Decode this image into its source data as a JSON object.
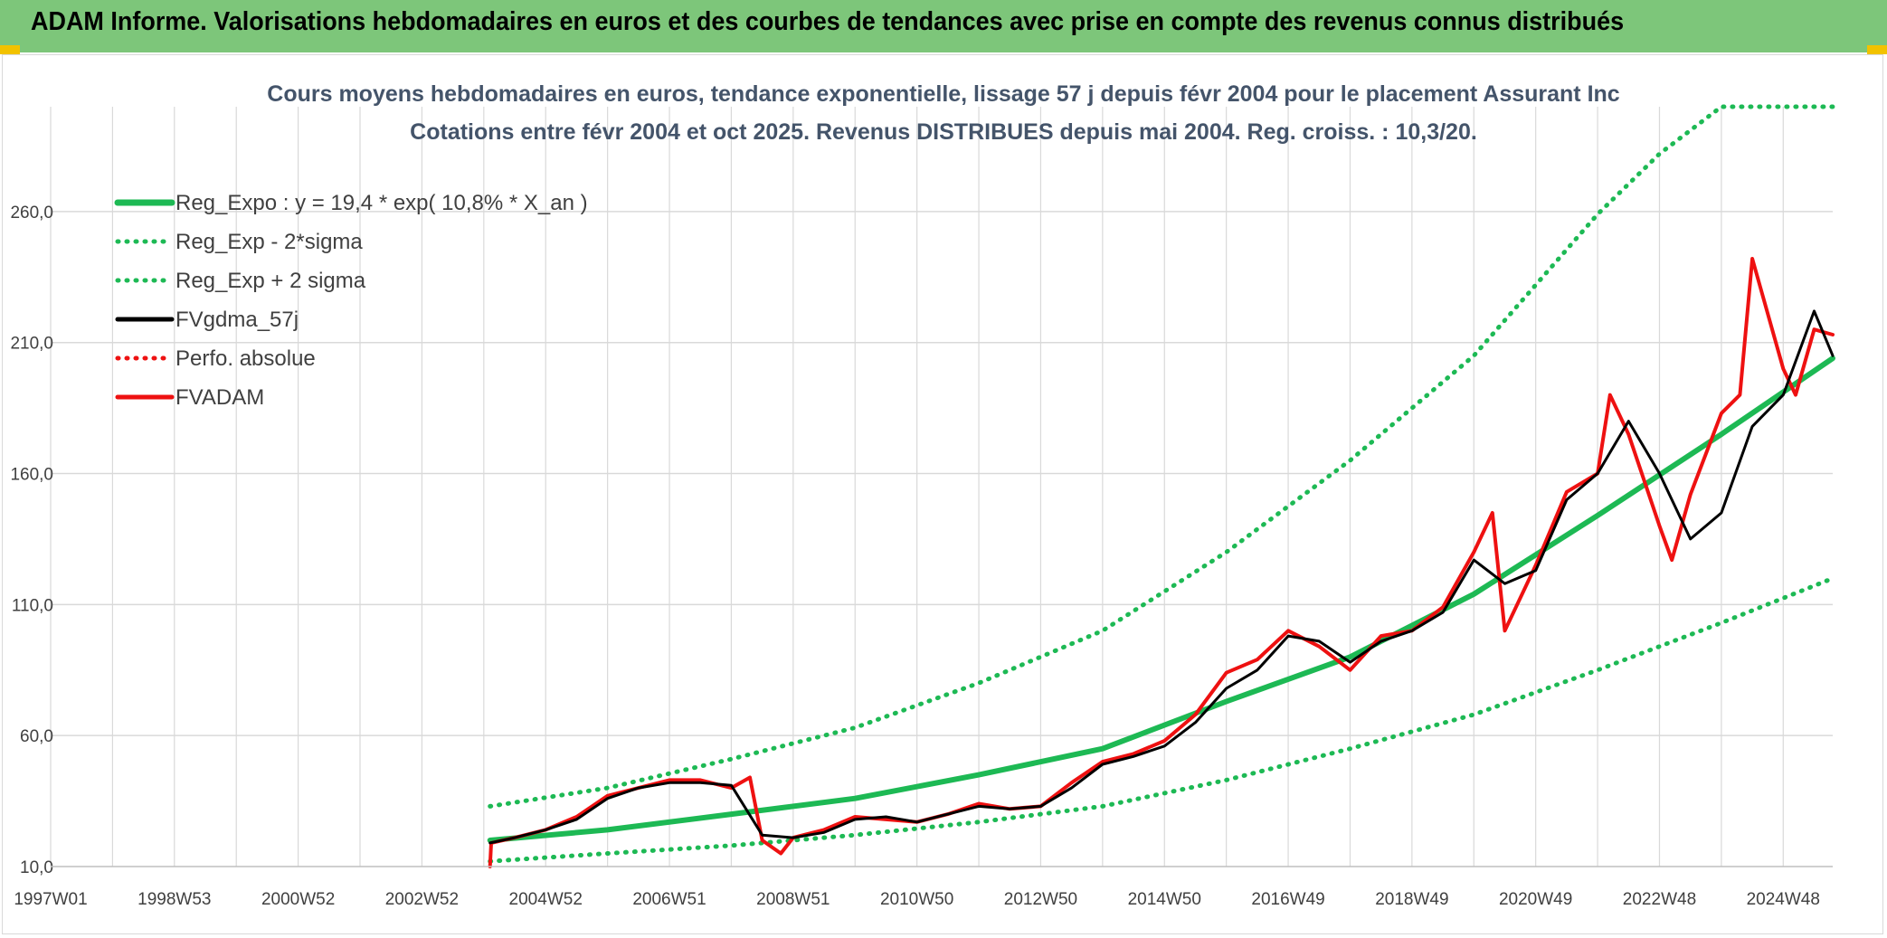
{
  "header": {
    "banner_title": "ADAM Informe. Valorisations hebdomadaires en euros et des courbes de tendances avec prise en compte des revenus connus distribués"
  },
  "colors": {
    "banner": "#7dc67a",
    "trend": "#1db954",
    "smoothed": "#000000",
    "price": "#ee1111",
    "perfo": "#ee1111",
    "grid": "#d9d9d9"
  },
  "chart_data": {
    "type": "line",
    "title_lines": [
      "Cours moyens hebdomadaires en euros, tendance exponentielle, lissage 57 j depuis févr 2004 pour le placement Assurant Inc",
      "Cotations entre févr 2004 et oct 2025. Revenus DISTRIBUES depuis mai 2004. Reg. croiss. : 10,3/20."
    ],
    "xlabel": "",
    "ylabel": "",
    "x_tick_labels": [
      "1997W01",
      "1998W53",
      "2000W52",
      "2002W52",
      "2004W52",
      "2006W51",
      "2008W51",
      "2010W50",
      "2012W50",
      "2014W50",
      "2016W49",
      "2018W49",
      "2020W49",
      "2022W48",
      "2024W48"
    ],
    "x_ticks_years": [
      1997.0,
      1999.0,
      2001.0,
      2003.0,
      2005.0,
      2007.0,
      2009.0,
      2011.0,
      2013.0,
      2015.0,
      2017.0,
      2019.0,
      2021.0,
      2023.0,
      2025.0
    ],
    "xlim_years": [
      1997.0,
      2025.8
    ],
    "y_tick_labels": [
      "10,0",
      "60,0",
      "110,0",
      "160,0",
      "210,0",
      "260,0"
    ],
    "y_ticks": [
      10,
      60,
      110,
      160,
      210,
      260
    ],
    "ylim": [
      10,
      300
    ],
    "grid": true,
    "legend_position": "top-left",
    "legend": [
      {
        "label": "Reg_Expo : y = 19,4 * exp( 10,8% *  X_an )",
        "color": "#1db954",
        "style": "solid"
      },
      {
        "label": "Reg_Exp - 2*sigma",
        "color": "#1db954",
        "style": "dotted"
      },
      {
        "label": "Reg_Exp + 2 sigma",
        "color": "#1db954",
        "style": "dotted"
      },
      {
        "label": "FVgdma_57j",
        "color": "#000000",
        "style": "solid"
      },
      {
        "label": "Perfo. absolue",
        "color": "#ee1111",
        "style": "dotted"
      },
      {
        "label": "FVADAM",
        "color": "#ee1111",
        "style": "solid"
      }
    ],
    "series": [
      {
        "name": "Reg_Expo : y = 19,4 * exp( 10,8% *  X_an )",
        "x": [
          2004.1,
          2006,
          2008,
          2010,
          2012,
          2014,
          2016,
          2018,
          2020,
          2022,
          2024,
          2025.8
        ],
        "values": [
          20,
          24,
          30,
          36,
          45,
          55,
          73,
          90,
          114,
          144,
          175,
          204
        ]
      },
      {
        "name": "Reg_Exp - 2*sigma",
        "x": [
          2004.1,
          2006,
          2008,
          2010,
          2012,
          2014,
          2016,
          2018,
          2020,
          2022,
          2024,
          2025.8
        ],
        "values": [
          12,
          15,
          18,
          22,
          27,
          33,
          43,
          55,
          68,
          85,
          103,
          120
        ]
      },
      {
        "name": "Reg_Exp + 2 sigma",
        "x": [
          2004.1,
          2006,
          2008,
          2010,
          2012,
          2014,
          2016,
          2018,
          2020,
          2022,
          2023,
          2024,
          2024.6,
          2025.8
        ],
        "values": [
          33,
          40,
          51,
          63,
          80,
          100,
          130,
          165,
          205,
          259,
          282,
          300,
          300,
          300
        ]
      },
      {
        "name": "FVgdma_57j",
        "x": [
          2004.1,
          2004.5,
          2005,
          2005.5,
          2006,
          2006.5,
          2007,
          2007.5,
          2008,
          2008.5,
          2009,
          2009.5,
          2010,
          2010.5,
          2011,
          2011.5,
          2012,
          2012.5,
          2013,
          2013.5,
          2014,
          2014.5,
          2015,
          2015.5,
          2016,
          2016.5,
          2017,
          2017.5,
          2018,
          2018.5,
          2019,
          2019.5,
          2020,
          2020.5,
          2021,
          2021.5,
          2022,
          2022.5,
          2023,
          2023.5,
          2024,
          2024.5,
          2025,
          2025.5,
          2025.8
        ],
        "values": [
          19,
          21,
          24,
          28,
          36,
          40,
          42,
          42,
          41,
          22,
          21,
          23,
          28,
          29,
          27,
          30,
          33,
          32,
          33,
          40,
          49,
          52,
          56,
          65,
          78,
          85,
          98,
          96,
          88,
          96,
          100,
          107,
          127,
          118,
          123,
          150,
          160,
          180,
          160,
          135,
          145,
          178,
          190,
          222,
          205
        ]
      },
      {
        "name": "FVADAM",
        "x": [
          2004.1,
          2004.12,
          2004.5,
          2005,
          2005.5,
          2006,
          2006.5,
          2007,
          2007.5,
          2008,
          2008.3,
          2008.5,
          2008.8,
          2009,
          2009.5,
          2010,
          2010.5,
          2011,
          2011.5,
          2012,
          2012.5,
          2013,
          2013.5,
          2014,
          2014.5,
          2015,
          2015.5,
          2016,
          2016.5,
          2017,
          2017.5,
          2018,
          2018.5,
          2019,
          2019.5,
          2020,
          2020.3,
          2020.5,
          2021,
          2021.5,
          2022,
          2022.2,
          2022.5,
          2023,
          2023.2,
          2023.5,
          2024,
          2024.3,
          2024.5,
          2025,
          2025.2,
          2025.5,
          2025.8
        ],
        "values": [
          10,
          19,
          21,
          24,
          29,
          37,
          40,
          43,
          43,
          40,
          44,
          20,
          15,
          21,
          24,
          29,
          28,
          27,
          30,
          34,
          32,
          33,
          42,
          50,
          53,
          58,
          68,
          84,
          89,
          100,
          94,
          85,
          98,
          100,
          109,
          130,
          145,
          100,
          125,
          153,
          160,
          190,
          175,
          140,
          127,
          152,
          183,
          190,
          242,
          200,
          190,
          215,
          213
        ]
      }
    ]
  }
}
